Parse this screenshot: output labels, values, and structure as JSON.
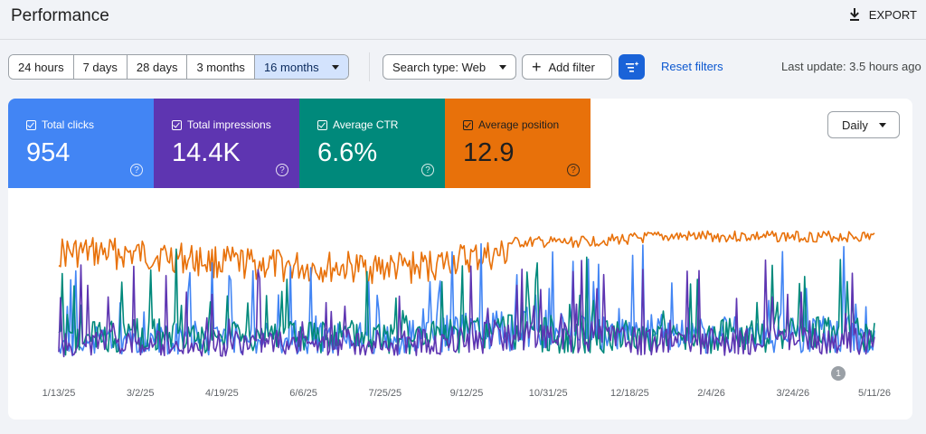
{
  "header": {
    "title": "Performance",
    "export_label": "EXPORT"
  },
  "filters": {
    "date_ranges": [
      "24 hours",
      "7 days",
      "28 days",
      "3 months",
      "16 months"
    ],
    "active_range": "16 months",
    "search_type": "Search type: Web",
    "add_filter": "Add filter",
    "reset": "Reset filters",
    "last_update": "Last update: 3.5 hours ago"
  },
  "metrics": [
    {
      "label": "Total clicks",
      "value": "954",
      "color": "#4285f4",
      "checked": true
    },
    {
      "label": "Total impressions",
      "value": "14.4K",
      "color": "#5e35b1",
      "checked": true
    },
    {
      "label": "Average CTR",
      "value": "6.6%",
      "color": "#00897b",
      "checked": true
    },
    {
      "label": "Average position",
      "value": "12.9",
      "color": "#e8710a",
      "text_color": "#1f1f1f",
      "checked": true
    }
  ],
  "granularity": "Daily",
  "annotation_count": "1",
  "chart_data": {
    "type": "line",
    "x_tick_labels": [
      "1/13/25",
      "3/2/25",
      "4/19/25",
      "6/6/25",
      "7/25/25",
      "9/12/25",
      "10/31/25",
      "12/18/25",
      "2/4/26",
      "3/24/26",
      "5/11/26"
    ],
    "x_range": [
      "1/13/25",
      "5/11/26"
    ],
    "grid": false,
    "series": [
      {
        "name": "Average position",
        "color": "#e8710a",
        "envelope": [
          0.86,
          0.86,
          0.84,
          0.8,
          0.78,
          0.76,
          0.76,
          0.76,
          0.82,
          0.86,
          0.86,
          0.88,
          0.9,
          0.9,
          0.9,
          0.9,
          0.9
        ]
      },
      {
        "name": "Total clicks",
        "color": "#4285f4",
        "envelope": [
          0.2,
          0.22,
          0.24,
          0.22,
          0.25,
          0.24,
          0.24,
          0.26,
          0.3,
          0.34,
          0.3,
          0.28,
          0.26,
          0.28,
          0.3,
          0.28,
          0.26
        ]
      },
      {
        "name": "Average CTR",
        "color": "#00897b",
        "envelope": [
          0.22,
          0.26,
          0.28,
          0.26,
          0.28,
          0.26,
          0.26,
          0.26,
          0.28,
          0.3,
          0.28,
          0.26,
          0.24,
          0.26,
          0.3,
          0.28,
          0.26
        ]
      },
      {
        "name": "Total impressions",
        "color": "#5e35b1",
        "envelope": [
          0.18,
          0.2,
          0.2,
          0.19,
          0.2,
          0.2,
          0.2,
          0.21,
          0.24,
          0.27,
          0.24,
          0.22,
          0.21,
          0.22,
          0.24,
          0.22,
          0.21
        ]
      }
    ]
  }
}
